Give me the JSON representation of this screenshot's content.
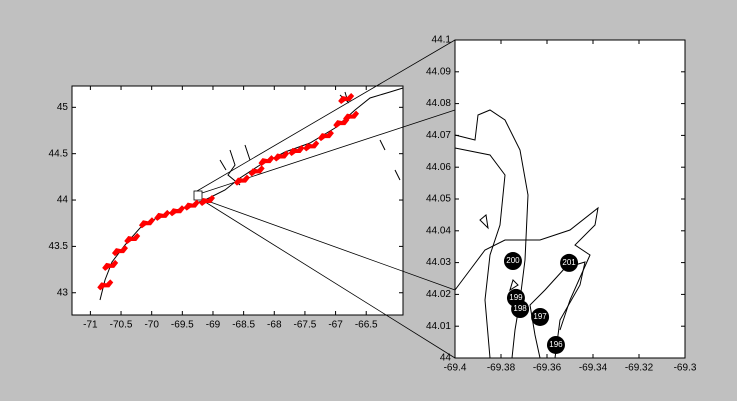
{
  "chart_data": [
    {
      "type": "scatter",
      "x": [
        -70.79,
        -70.71,
        -70.55,
        -70.35,
        -70.11,
        -69.86,
        -69.62,
        -69.38,
        -69.13,
        -68.56,
        -68.32,
        -68.16,
        -67.92,
        -67.67,
        -67.43,
        -67.19,
        -66.94,
        -66.78,
        -66.86
      ],
      "y": [
        43.09,
        43.3,
        43.46,
        43.59,
        43.76,
        43.84,
        43.89,
        43.95,
        44.0,
        44.22,
        44.32,
        44.43,
        44.48,
        44.54,
        44.59,
        44.7,
        44.84,
        44.91,
        45.1
      ],
      "color": "#ff0000",
      "xlim": [
        -71.3,
        -65.9
      ],
      "xticks": [
        -71,
        -70.5,
        -70,
        -69.5,
        -69,
        -68.5,
        -68,
        -67.5,
        -67,
        -66.5
      ],
      "ylim": [
        42.76,
        45.23
      ],
      "yticks": [
        43,
        43.5,
        44,
        44.5,
        45
      ]
    },
    {
      "type": "scatter",
      "x": [
        -69.3748,
        -69.3504,
        -69.3735,
        -69.3717,
        -69.363,
        -69.3561
      ],
      "y": [
        44.0305,
        44.0299,
        44.0189,
        44.0154,
        44.0129,
        44.0041
      ],
      "labels": [
        "200",
        "201",
        "199",
        "198",
        "197",
        "196"
      ],
      "color": "#000000",
      "xlim": [
        -69.4,
        -69.3
      ],
      "xticks": [
        -69.4,
        -69.38,
        -69.36,
        -69.34,
        -69.32,
        -69.3
      ],
      "ylim": [
        44,
        44.1
      ],
      "yticks": [
        44,
        44.01,
        44.02,
        44.03,
        44.04,
        44.05,
        44.06,
        44.07,
        44.08,
        44.09,
        44.1
      ]
    }
  ]
}
